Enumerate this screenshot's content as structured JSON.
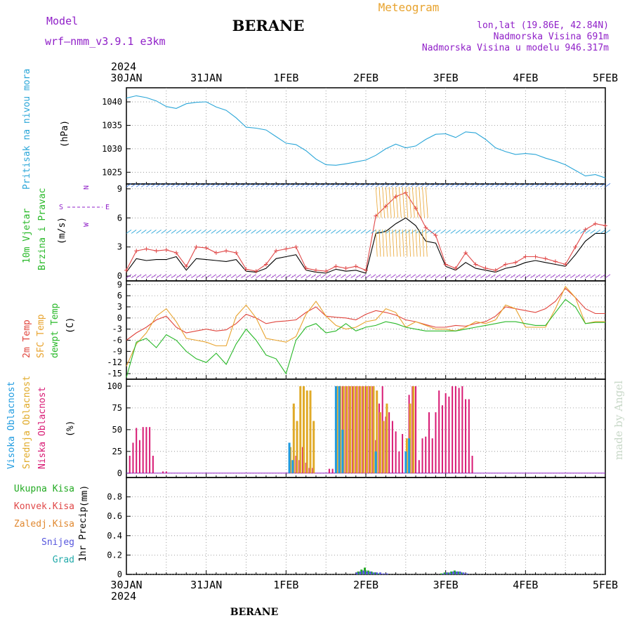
{
  "header": {
    "model_label": "Model",
    "model_value": "wrf—nmm_v3.9.1  e3km",
    "station": "BERANE",
    "product": "Meteogram",
    "lonlat": "lon,lat (19.86E, 42.84N)",
    "elevation": "Nadmorska Visina 691m",
    "model_elevation": "Nadmorska Visina u modelu 946.317m",
    "footer_station": "BERANE",
    "watermark": "made by Angel"
  },
  "colors": {
    "pressure": "#2aa6d8",
    "temp2m": "#e0443c",
    "sfctemp": "#e8a32e",
    "dewpoint": "#28b828",
    "cloud_high": "#1f9be0",
    "cloud_mid": "#e0aa28",
    "cloud_low": "#d81a74",
    "precip_total": "#22aa22",
    "precip_conv": "#e04848",
    "precip_frozen": "#e08830",
    "precip_snow": "#5555dd",
    "precip_graupel": "#22aaaa",
    "wind_speed": "#000000",
    "wind_gust": "#e04848",
    "purple": "#9020c8"
  },
  "time_axis": {
    "year": "2024",
    "labels": [
      "30JAN",
      "31JAN",
      "1FEB",
      "2FEB",
      "3FEB",
      "4FEB",
      "5FEB"
    ],
    "hours_total": 144
  },
  "chart_data": [
    {
      "type": "line",
      "panel": "pressure",
      "ylabel_main": "Pritisak na nivou mora",
      "unit": "(hPa)",
      "ylim": [
        1022.5,
        1043
      ],
      "yticks": [
        1025,
        1030,
        1035,
        1040
      ],
      "grid": true,
      "series": [
        {
          "x": [
            0,
            3,
            6,
            9,
            12,
            15,
            18,
            21,
            24,
            27,
            30,
            33,
            36,
            39,
            42,
            45,
            48,
            51,
            54,
            57,
            60,
            63,
            66,
            69,
            72,
            75,
            78,
            81,
            84,
            87,
            90,
            93,
            96,
            99,
            102,
            105,
            108,
            111,
            114,
            117,
            120,
            123,
            126,
            129,
            132,
            135,
            138,
            141,
            144
          ],
          "y": [
            1040.8,
            1041.3,
            1040.9,
            1040.2,
            1039.0,
            1038.6,
            1039.6,
            1039.9,
            1040.0,
            1038.9,
            1038.2,
            1036.6,
            1034.6,
            1034.4,
            1034.0,
            1032.6,
            1031.2,
            1030.9,
            1029.6,
            1027.8,
            1026.6,
            1026.5,
            1026.8,
            1027.2,
            1027.6,
            1028.6,
            1030.0,
            1031.0,
            1030.2,
            1030.6,
            1032.0,
            1033.1,
            1033.2,
            1032.4,
            1033.6,
            1033.4,
            1032.0,
            1030.2,
            1029.4,
            1028.8,
            1029.0,
            1028.8,
            1028.0,
            1027.4,
            1026.6,
            1025.4,
            1024.2,
            1024.5,
            1023.8
          ]
        }
      ]
    },
    {
      "type": "line",
      "panel": "wind",
      "ylabel_main": "10m Vjetar",
      "ylabel_sub": "Brzina i Pravac",
      "unit": "(m/s)",
      "compass": [
        "N",
        "W",
        "E",
        "S"
      ],
      "ylim": [
        -0.5,
        9.5
      ],
      "yticks": [
        0,
        3,
        6,
        9
      ],
      "grid": true,
      "series": [
        {
          "name": "speed",
          "x": [
            0,
            3,
            6,
            9,
            12,
            15,
            18,
            21,
            24,
            27,
            30,
            33,
            36,
            39,
            42,
            45,
            48,
            51,
            54,
            57,
            60,
            63,
            66,
            69,
            72,
            75,
            78,
            81,
            84,
            87,
            90,
            93,
            96,
            99,
            102,
            105,
            108,
            111,
            114,
            117,
            120,
            123,
            126,
            129,
            132,
            135,
            138,
            141,
            144
          ],
          "y": [
            0.4,
            1.8,
            1.6,
            1.7,
            1.7,
            2.0,
            0.6,
            1.8,
            1.7,
            1.6,
            1.5,
            1.7,
            0.5,
            0.4,
            0.8,
            1.8,
            2.0,
            2.2,
            0.6,
            0.4,
            0.3,
            0.7,
            0.5,
            0.6,
            0.3,
            4.4,
            4.6,
            5.4,
            6.0,
            5.2,
            3.6,
            3.4,
            1.0,
            0.6,
            1.4,
            0.8,
            0.6,
            0.4,
            0.8,
            1.0,
            1.4,
            1.6,
            1.4,
            1.2,
            1.0,
            2.2,
            3.6,
            4.4,
            4.4
          ]
        },
        {
          "name": "gust",
          "x": [
            0,
            3,
            6,
            9,
            12,
            15,
            18,
            21,
            24,
            27,
            30,
            33,
            36,
            39,
            42,
            45,
            48,
            51,
            54,
            57,
            60,
            63,
            66,
            69,
            72,
            75,
            78,
            81,
            84,
            87,
            90,
            93,
            96,
            99,
            102,
            105,
            108,
            111,
            114,
            117,
            120,
            123,
            126,
            129,
            132,
            135,
            138,
            141,
            144
          ],
          "y": [
            0.6,
            2.6,
            2.8,
            2.6,
            2.7,
            2.4,
            1.0,
            3.0,
            2.9,
            2.4,
            2.6,
            2.4,
            0.7,
            0.5,
            1.2,
            2.6,
            2.8,
            3.0,
            0.8,
            0.6,
            0.5,
            1.0,
            0.8,
            1.0,
            0.6,
            6.2,
            7.2,
            8.2,
            8.6,
            7.0,
            5.0,
            4.2,
            1.2,
            0.8,
            2.4,
            1.2,
            0.8,
            0.6,
            1.2,
            1.4,
            2.0,
            2.0,
            1.8,
            1.5,
            1.2,
            3.0,
            4.8,
            5.4,
            5.2
          ]
        }
      ]
    },
    {
      "type": "line",
      "panel": "temperature",
      "ylabel_a": "2m Temp",
      "ylabel_b": "SFC Temp",
      "ylabel_c": "dewpt Temp",
      "unit": "(C)",
      "ylim": [
        -16.5,
        10
      ],
      "yticks": [
        9,
        6,
        3,
        0,
        -3,
        -6,
        -9,
        -12,
        -15
      ],
      "grid": true,
      "series": [
        {
          "name": "2m Temp",
          "x": [
            0,
            3,
            6,
            9,
            12,
            15,
            18,
            21,
            24,
            27,
            30,
            33,
            36,
            39,
            42,
            45,
            48,
            51,
            54,
            57,
            60,
            63,
            66,
            69,
            72,
            75,
            78,
            81,
            84,
            87,
            90,
            93,
            96,
            99,
            102,
            105,
            108,
            111,
            114,
            117,
            120,
            123,
            126,
            129,
            132,
            135,
            138,
            141,
            144
          ],
          "y": [
            -6.0,
            -4.0,
            -2.5,
            -0.5,
            0.5,
            -2.5,
            -4.0,
            -3.5,
            -3.0,
            -3.5,
            -3.2,
            -1.5,
            1.0,
            0.0,
            -1.5,
            -1.0,
            -0.8,
            -0.5,
            1.5,
            3.0,
            0.5,
            0.2,
            0.0,
            -0.5,
            1.0,
            2.0,
            1.5,
            0.8,
            -0.5,
            -1.0,
            -1.8,
            -2.5,
            -2.5,
            -2.0,
            -2.2,
            -1.5,
            -1.0,
            0.5,
            3.0,
            2.5,
            2.0,
            1.5,
            2.5,
            4.5,
            8.0,
            5.5,
            2.5,
            1.2,
            1.2
          ]
        },
        {
          "name": "SFC Temp",
          "x": [
            0,
            3,
            6,
            9,
            12,
            15,
            18,
            21,
            24,
            27,
            30,
            33,
            36,
            39,
            42,
            45,
            48,
            51,
            54,
            57,
            60,
            63,
            66,
            69,
            72,
            75,
            78,
            81,
            84,
            87,
            90,
            93,
            96,
            99,
            102,
            105,
            108,
            111,
            114,
            117,
            120,
            123,
            126,
            129,
            132,
            135,
            138,
            141,
            144
          ],
          "y": [
            -13.0,
            -7.0,
            -4.0,
            0.5,
            2.5,
            -1.0,
            -5.5,
            -6.0,
            -6.5,
            -7.5,
            -7.5,
            0.5,
            3.5,
            0.0,
            -5.5,
            -6.0,
            -6.5,
            -5.0,
            1.0,
            4.5,
            0.5,
            -2.0,
            -3.0,
            -2.5,
            -1.0,
            -0.5,
            2.5,
            1.5,
            -2.5,
            -1.0,
            -2.0,
            -3.0,
            -3.0,
            -3.5,
            -2.5,
            -1.0,
            -1.5,
            -0.5,
            3.5,
            2.5,
            -2.5,
            -2.5,
            -2.5,
            2.5,
            8.5,
            5.5,
            -1.5,
            -1.0,
            -1.0
          ]
        },
        {
          "name": "dewpt Temp",
          "x": [
            0,
            3,
            6,
            9,
            12,
            15,
            18,
            21,
            24,
            27,
            30,
            33,
            36,
            39,
            42,
            45,
            48,
            51,
            54,
            57,
            60,
            63,
            66,
            69,
            72,
            75,
            78,
            81,
            84,
            87,
            90,
            93,
            96,
            99,
            102,
            105,
            108,
            111,
            114,
            117,
            120,
            123,
            126,
            129,
            132,
            135,
            138,
            141,
            144
          ],
          "y": [
            -16.0,
            -6.5,
            -5.5,
            -8.0,
            -4.5,
            -6.0,
            -9.0,
            -11.0,
            -12.0,
            -9.5,
            -12.5,
            -7.0,
            -3.0,
            -6.0,
            -10.0,
            -11.0,
            -15.0,
            -6.0,
            -2.5,
            -1.5,
            -4.0,
            -3.5,
            -1.5,
            -3.5,
            -2.5,
            -2.0,
            -1.0,
            -1.5,
            -2.5,
            -3.0,
            -3.5,
            -3.5,
            -3.5,
            -3.5,
            -3.0,
            -2.5,
            -2.0,
            -1.5,
            -1.0,
            -1.0,
            -1.5,
            -2.0,
            -2.0,
            1.5,
            5.0,
            3.0,
            -1.5,
            -1.2,
            -1.2
          ]
        }
      ]
    },
    {
      "type": "bar",
      "panel": "clouds",
      "ylabel_a": "Visoka Oblacnost",
      "ylabel_b": "Srednja Oblacnost",
      "ylabel_c": "Niska Oblacnost",
      "unit": "(%)",
      "ylim": [
        -5,
        108
      ],
      "yticks": [
        0,
        25,
        50,
        75,
        100
      ],
      "grid": true,
      "series": [
        {
          "name": "Niska Oblacnost",
          "x": [
            1,
            2,
            3,
            4,
            5,
            6,
            7,
            8,
            11,
            12,
            50,
            51,
            52,
            53,
            54,
            55,
            56,
            61,
            62,
            63,
            64,
            65,
            66,
            67,
            68,
            69,
            70,
            71,
            72,
            73,
            74,
            75,
            76,
            77,
            78,
            79,
            80,
            81,
            82,
            83,
            84,
            85,
            86,
            87,
            88,
            89,
            90,
            91,
            92,
            93,
            94,
            95,
            96,
            97,
            98,
            99,
            100,
            101,
            102,
            103,
            104
          ],
          "y": [
            20,
            35,
            52,
            38,
            53,
            53,
            53,
            20,
            2,
            2,
            8,
            20,
            15,
            30,
            12,
            6,
            6,
            5,
            5,
            100,
            100,
            100,
            100,
            100,
            100,
            100,
            100,
            100,
            100,
            100,
            100,
            38,
            80,
            100,
            65,
            70,
            60,
            48,
            25,
            45,
            20,
            90,
            100,
            100,
            15,
            40,
            42,
            70,
            40,
            70,
            95,
            78,
            92,
            88,
            100,
            100,
            98,
            100,
            85,
            85,
            20
          ]
        },
        {
          "name": "Srednja Oblacnost",
          "x": [
            49,
            50,
            51,
            52,
            53,
            54,
            55,
            56,
            63,
            64,
            65,
            66,
            67,
            68,
            69,
            70,
            71,
            72,
            73,
            74,
            75,
            76,
            77,
            78,
            84,
            85,
            86
          ],
          "y": [
            30,
            80,
            60,
            100,
            100,
            95,
            95,
            60,
            100,
            100,
            100,
            100,
            100,
            100,
            100,
            100,
            100,
            100,
            100,
            100,
            95,
            70,
            60,
            80,
            40,
            80,
            100
          ]
        },
        {
          "name": "Visoka Oblacnost",
          "x": [
            49,
            50,
            63,
            64,
            65,
            75,
            84,
            85
          ],
          "y": [
            35,
            15,
            100,
            100,
            50,
            25,
            25,
            40
          ]
        }
      ]
    },
    {
      "type": "bar",
      "panel": "precip",
      "ylabel_main": "1hr Precip",
      "unit": "(mm)",
      "legend": [
        "Ukupna Kisa",
        "Konvek.Kisa",
        "Zaledj.Kisa",
        "Snijeg",
        "Grad"
      ],
      "ylim": [
        0,
        1.0
      ],
      "yticks": [
        0,
        0.2,
        0.4,
        0.6,
        0.8
      ],
      "grid": true,
      "series": [
        {
          "name": "Ukupna Kisa",
          "x": [
            70,
            71,
            72,
            73,
            74,
            75,
            76,
            95,
            96,
            97,
            98,
            99,
            100,
            101
          ],
          "y": [
            0.03,
            0.05,
            0.07,
            0.04,
            0.03,
            0.02,
            0.01,
            0.01,
            0.02,
            0.02,
            0.03,
            0.04,
            0.03,
            0.02
          ]
        },
        {
          "name": "Snijeg",
          "x": [
            69,
            70,
            71,
            72,
            73,
            74,
            75,
            76,
            77,
            78,
            95,
            96,
            97,
            98,
            99,
            100,
            101,
            102
          ],
          "y": [
            0.02,
            0.03,
            0.04,
            0.03,
            0.03,
            0.02,
            0.02,
            0.02,
            0.01,
            0.01,
            0.01,
            0.02,
            0.02,
            0.03,
            0.03,
            0.03,
            0.02,
            0.01
          ]
        }
      ]
    }
  ]
}
